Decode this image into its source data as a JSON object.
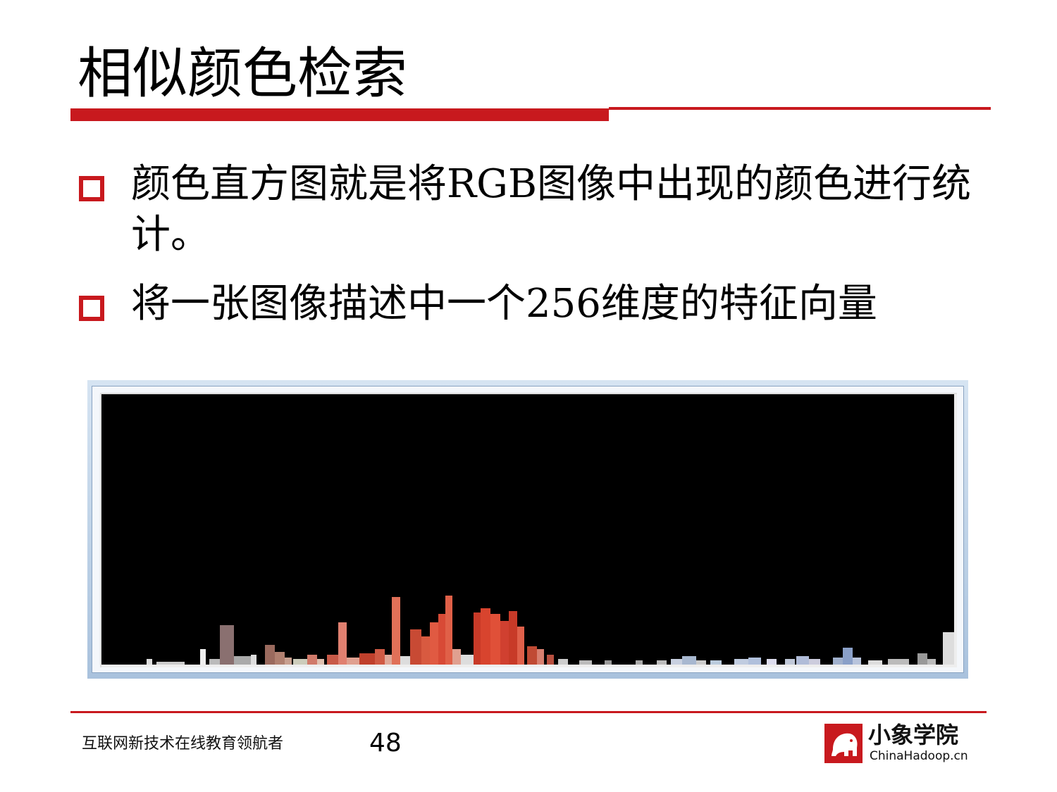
{
  "slide": {
    "title": "相似颜色检索",
    "bullets": [
      "颜色直方图就是将RGB图像中出现的颜色进行统计。",
      "将一张图像描述中一个256维度的特征向量"
    ]
  },
  "figure": {
    "description_icon": "color-histogram-image"
  },
  "footer": {
    "tagline": "互联网新技术在线教育领航者",
    "page_number": "48",
    "logo_cn": "小象学院",
    "logo_en": "ChinaHadoop.cn"
  },
  "colors": {
    "accent": "#c8191e"
  }
}
